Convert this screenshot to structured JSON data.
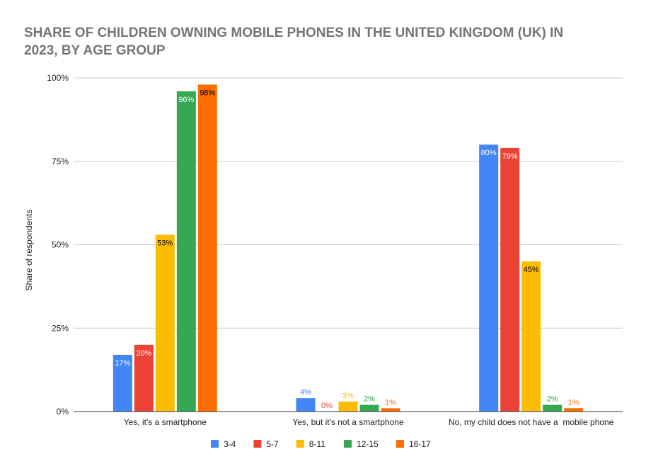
{
  "chart_data": {
    "type": "bar",
    "title_lines": [
      "SHARE OF CHILDREN OWNING MOBILE PHONES IN THE UNITED KINGDOM (UK) IN",
      "2023, BY AGE GROUP"
    ],
    "ylabel": "Share of respondents",
    "xlabel": "",
    "ylim": [
      0,
      100
    ],
    "yticks": [
      "0%",
      "25%",
      "50%",
      "75%",
      "100%"
    ],
    "ytick_values": [
      0,
      25,
      50,
      75,
      100
    ],
    "grid": true,
    "legend_position": "bottom",
    "categories": [
      "Yes, it's a smartphone",
      "Yes, but it's not a smartphone",
      "No, my child does not have a  mobile phone"
    ],
    "series": [
      {
        "name": "3-4",
        "color": "#4285f4",
        "values": [
          17,
          4,
          80
        ],
        "labels": [
          "17%",
          "4%",
          "80%"
        ]
      },
      {
        "name": "5-7",
        "color": "#ea4335",
        "values": [
          20,
          0,
          79
        ],
        "labels": [
          "20%",
          "0%",
          "79%"
        ]
      },
      {
        "name": "8-11",
        "color": "#fbbc04",
        "values": [
          53,
          3,
          45
        ],
        "labels": [
          "53%",
          "3%",
          "45%"
        ]
      },
      {
        "name": "12-15",
        "color": "#34a853",
        "values": [
          96,
          2,
          2
        ],
        "labels": [
          "96%",
          "2%",
          "2%"
        ]
      },
      {
        "name": "16-17",
        "color": "#ff6d01",
        "values": [
          98,
          1,
          1
        ],
        "labels": [
          "98%",
          "1%",
          "1%"
        ]
      }
    ]
  }
}
